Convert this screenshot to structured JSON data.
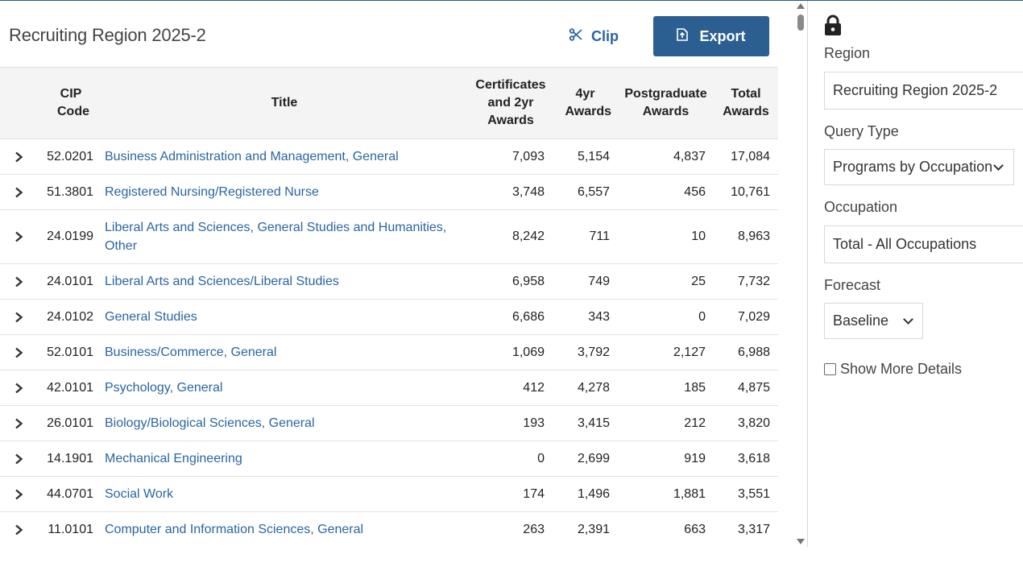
{
  "header": {
    "title": "Recruiting Region 2025-2",
    "clip_label": "Clip",
    "export_label": "Export"
  },
  "table": {
    "columns": [
      "CIP Code",
      "Title",
      "Certificates and 2yr Awards",
      "4yr Awards",
      "Postgraduate Awards",
      "Total Awards"
    ],
    "rows": [
      {
        "cip": "52.0201",
        "title": "Business Administration and Management, General",
        "cert2yr": "7,093",
        "fouryr": "5,154",
        "postgrad": "4,837",
        "total": "17,084"
      },
      {
        "cip": "51.3801",
        "title": "Registered Nursing/Registered Nurse",
        "cert2yr": "3,748",
        "fouryr": "6,557",
        "postgrad": "456",
        "total": "10,761"
      },
      {
        "cip": "24.0199",
        "title": "Liberal Arts and Sciences, General Studies and Humanities, Other",
        "cert2yr": "8,242",
        "fouryr": "711",
        "postgrad": "10",
        "total": "8,963"
      },
      {
        "cip": "24.0101",
        "title": "Liberal Arts and Sciences/Liberal Studies",
        "cert2yr": "6,958",
        "fouryr": "749",
        "postgrad": "25",
        "total": "7,732"
      },
      {
        "cip": "24.0102",
        "title": "General Studies",
        "cert2yr": "6,686",
        "fouryr": "343",
        "postgrad": "0",
        "total": "7,029"
      },
      {
        "cip": "52.0101",
        "title": "Business/Commerce, General",
        "cert2yr": "1,069",
        "fouryr": "3,792",
        "postgrad": "2,127",
        "total": "6,988"
      },
      {
        "cip": "42.0101",
        "title": "Psychology, General",
        "cert2yr": "412",
        "fouryr": "4,278",
        "postgrad": "185",
        "total": "4,875"
      },
      {
        "cip": "26.0101",
        "title": "Biology/Biological Sciences, General",
        "cert2yr": "193",
        "fouryr": "3,415",
        "postgrad": "212",
        "total": "3,820"
      },
      {
        "cip": "14.1901",
        "title": "Mechanical Engineering",
        "cert2yr": "0",
        "fouryr": "2,699",
        "postgrad": "919",
        "total": "3,618"
      },
      {
        "cip": "44.0701",
        "title": "Social Work",
        "cert2yr": "174",
        "fouryr": "1,496",
        "postgrad": "1,881",
        "total": "3,551"
      },
      {
        "cip": "11.0101",
        "title": "Computer and Information Sciences, General",
        "cert2yr": "263",
        "fouryr": "2,391",
        "postgrad": "663",
        "total": "3,317"
      }
    ]
  },
  "panel": {
    "region_label": "Region",
    "region_value": "Recruiting Region 2025-2",
    "query_type_label": "Query Type",
    "query_type_value": "Programs by Occupation",
    "occupation_label": "Occupation",
    "occupation_value": "Total - All Occupations",
    "forecast_label": "Forecast",
    "forecast_value": "Baseline",
    "show_more_label": "Show More Details"
  },
  "colors": {
    "accent": "#2b5f91",
    "link": "#2a65a0"
  }
}
